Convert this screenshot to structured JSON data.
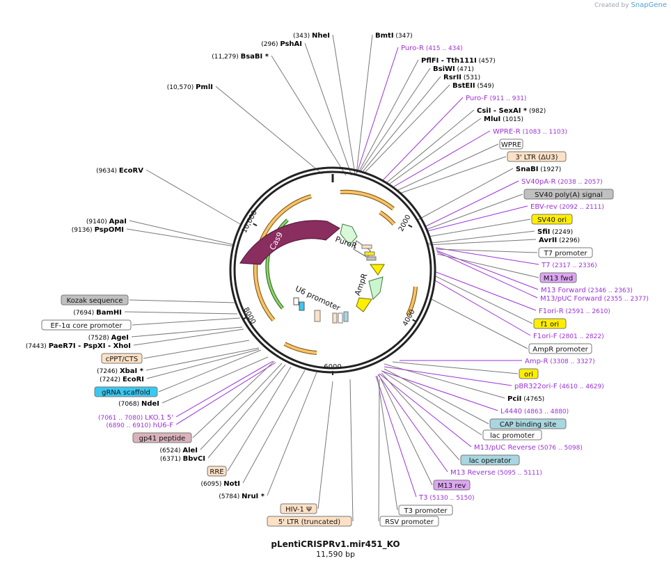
{
  "watermark": {
    "prefix": "Created by",
    "brand": "SnapGene"
  },
  "title": "pLentiCRISPRv1.mir451_KO",
  "size": "11,590 bp",
  "backbone_ticks": [
    "2000",
    "4000",
    "6000",
    "8000",
    "10,000"
  ],
  "colors": {
    "primer": "#9b30d9",
    "enzyme": "#000000",
    "cas9": "#8a2d5f",
    "wpre_arc": "#d98a1d",
    "green_arrow": "#3a8f22",
    "puro": "#c9f5c9",
    "amp": "#c9f5c9",
    "yellow": "#ffe600"
  },
  "inner_features": [
    {
      "label": "Cas9"
    },
    {
      "label": "PuroR"
    },
    {
      "label": "AmpR"
    },
    {
      "label": "U6 promoter"
    }
  ],
  "enzymes": [
    {
      "name": "NheI",
      "pos": "(343)"
    },
    {
      "name": "BmtI",
      "pos": "(347)"
    },
    {
      "name": "PshAI",
      "pos": "(296)"
    },
    {
      "name": "BsaBI *",
      "pos": "(11,279)"
    },
    {
      "name": "PmlI",
      "pos": "(10,570)"
    },
    {
      "name": "PflFI  - Tth111I",
      "pos": "(457)"
    },
    {
      "name": "BsiWI",
      "pos": "(471)"
    },
    {
      "name": "RsrII",
      "pos": "(531)"
    },
    {
      "name": "BstEII",
      "pos": "(549)"
    },
    {
      "name": "CsiI  - SexAI *",
      "pos": "(982)"
    },
    {
      "name": "MluI",
      "pos": "(1015)"
    },
    {
      "name": "SnaBI",
      "pos": "(1927)"
    },
    {
      "name": "SfiI",
      "pos": "(2249)"
    },
    {
      "name": "AvrII",
      "pos": "(2296)"
    },
    {
      "name": "PciI",
      "pos": "(4765)"
    },
    {
      "name": "EcoRV",
      "pos": "(9634)"
    },
    {
      "name": "ApaI",
      "pos": "(9140)"
    },
    {
      "name": "PspOMI",
      "pos": "(9136)"
    },
    {
      "name": "BamHI",
      "pos": "(7694)"
    },
    {
      "name": "AgeI",
      "pos": "(7528)"
    },
    {
      "name": "PaeR7I  - PspXI  - XhoI",
      "pos": "(7443)"
    },
    {
      "name": "XbaI *",
      "pos": "(7246)"
    },
    {
      "name": "EcoRI",
      "pos": "(7242)"
    },
    {
      "name": "NdeI",
      "pos": "(7068)"
    },
    {
      "name": "AleI",
      "pos": "(6524)"
    },
    {
      "name": "BbvCI",
      "pos": "(6371)"
    },
    {
      "name": "NotI",
      "pos": "(6095)"
    },
    {
      "name": "NruI *",
      "pos": "(5784)"
    }
  ],
  "primers": [
    {
      "name": "Puro-R",
      "range": "(415 .. 434)"
    },
    {
      "name": "Puro-F",
      "range": "(911 .. 931)"
    },
    {
      "name": "WPRE-R",
      "range": "(1083 .. 1103)"
    },
    {
      "name": "SV40pA-R",
      "range": "(2038 .. 2057)"
    },
    {
      "name": "EBV-rev",
      "range": "(2092 .. 2111)"
    },
    {
      "name": "T7",
      "range": "(2317 .. 2336)"
    },
    {
      "name": "M13 Forward",
      "range": "(2346 .. 2363)"
    },
    {
      "name": "M13/pUC Forward",
      "range": "(2355 .. 2377)"
    },
    {
      "name": "F1ori-R",
      "range": "(2591 .. 2610)"
    },
    {
      "name": "F1ori-F",
      "range": "(2801 .. 2822)"
    },
    {
      "name": "Amp-R",
      "range": "(3308 .. 3327)"
    },
    {
      "name": "pBR322ori-F",
      "range": "(4610 .. 4629)"
    },
    {
      "name": "L4440",
      "range": "(4863 .. 4880)"
    },
    {
      "name": "M13/pUC Reverse",
      "range": "(5076 .. 5098)"
    },
    {
      "name": "M13 Reverse",
      "range": "(5095 .. 5111)"
    },
    {
      "name": "T3",
      "range": "(5130 .. 5150)"
    },
    {
      "name": "LKO.1 5'",
      "range": "(7061 .. 7080)"
    },
    {
      "name": "hU6-F",
      "range": "(6890 .. 6910)"
    }
  ],
  "feature_boxes": [
    {
      "name": "WPRE",
      "fill": "#ffffff"
    },
    {
      "name": "3' LTR (ΔU3)",
      "fill": "#fde1c6"
    },
    {
      "name": "SV40 poly(A) signal",
      "fill": "#c0c0c0"
    },
    {
      "name": "SV40 ori",
      "fill": "#ffee00"
    },
    {
      "name": "T7 promoter",
      "fill": "#ffffff"
    },
    {
      "name": "M13 fwd",
      "fill": "#dca6f2"
    },
    {
      "name": "f1 ori",
      "fill": "#ffee00"
    },
    {
      "name": "AmpR promoter",
      "fill": "#ffffff"
    },
    {
      "name": "ori",
      "fill": "#ffee00"
    },
    {
      "name": "CAP binding site",
      "fill": "#a9d6e0"
    },
    {
      "name": "lac promoter",
      "fill": "#ffffff"
    },
    {
      "name": "lac operator",
      "fill": "#a9d6e0"
    },
    {
      "name": "M13 rev",
      "fill": "#dca6f2"
    },
    {
      "name": "T3 promoter",
      "fill": "#ffffff"
    },
    {
      "name": "RSV promoter",
      "fill": "#ffffff"
    },
    {
      "name": "5' LTR (truncated)",
      "fill": "#fde1c6"
    },
    {
      "name": "HIV-1 Ψ",
      "fill": "#fde1c6"
    },
    {
      "name": "RRE",
      "fill": "#fde1c6"
    },
    {
      "name": "gp41 peptide",
      "fill": "#d9b3bc"
    },
    {
      "name": "gRNA scaffold",
      "fill": "#3bc8f0"
    },
    {
      "name": "cPPT/CTS",
      "fill": "#fde1c6"
    },
    {
      "name": "EF-1α core promoter",
      "fill": "#ffffff"
    },
    {
      "name": "Kozak sequence",
      "fill": "#c0c0c0"
    }
  ]
}
